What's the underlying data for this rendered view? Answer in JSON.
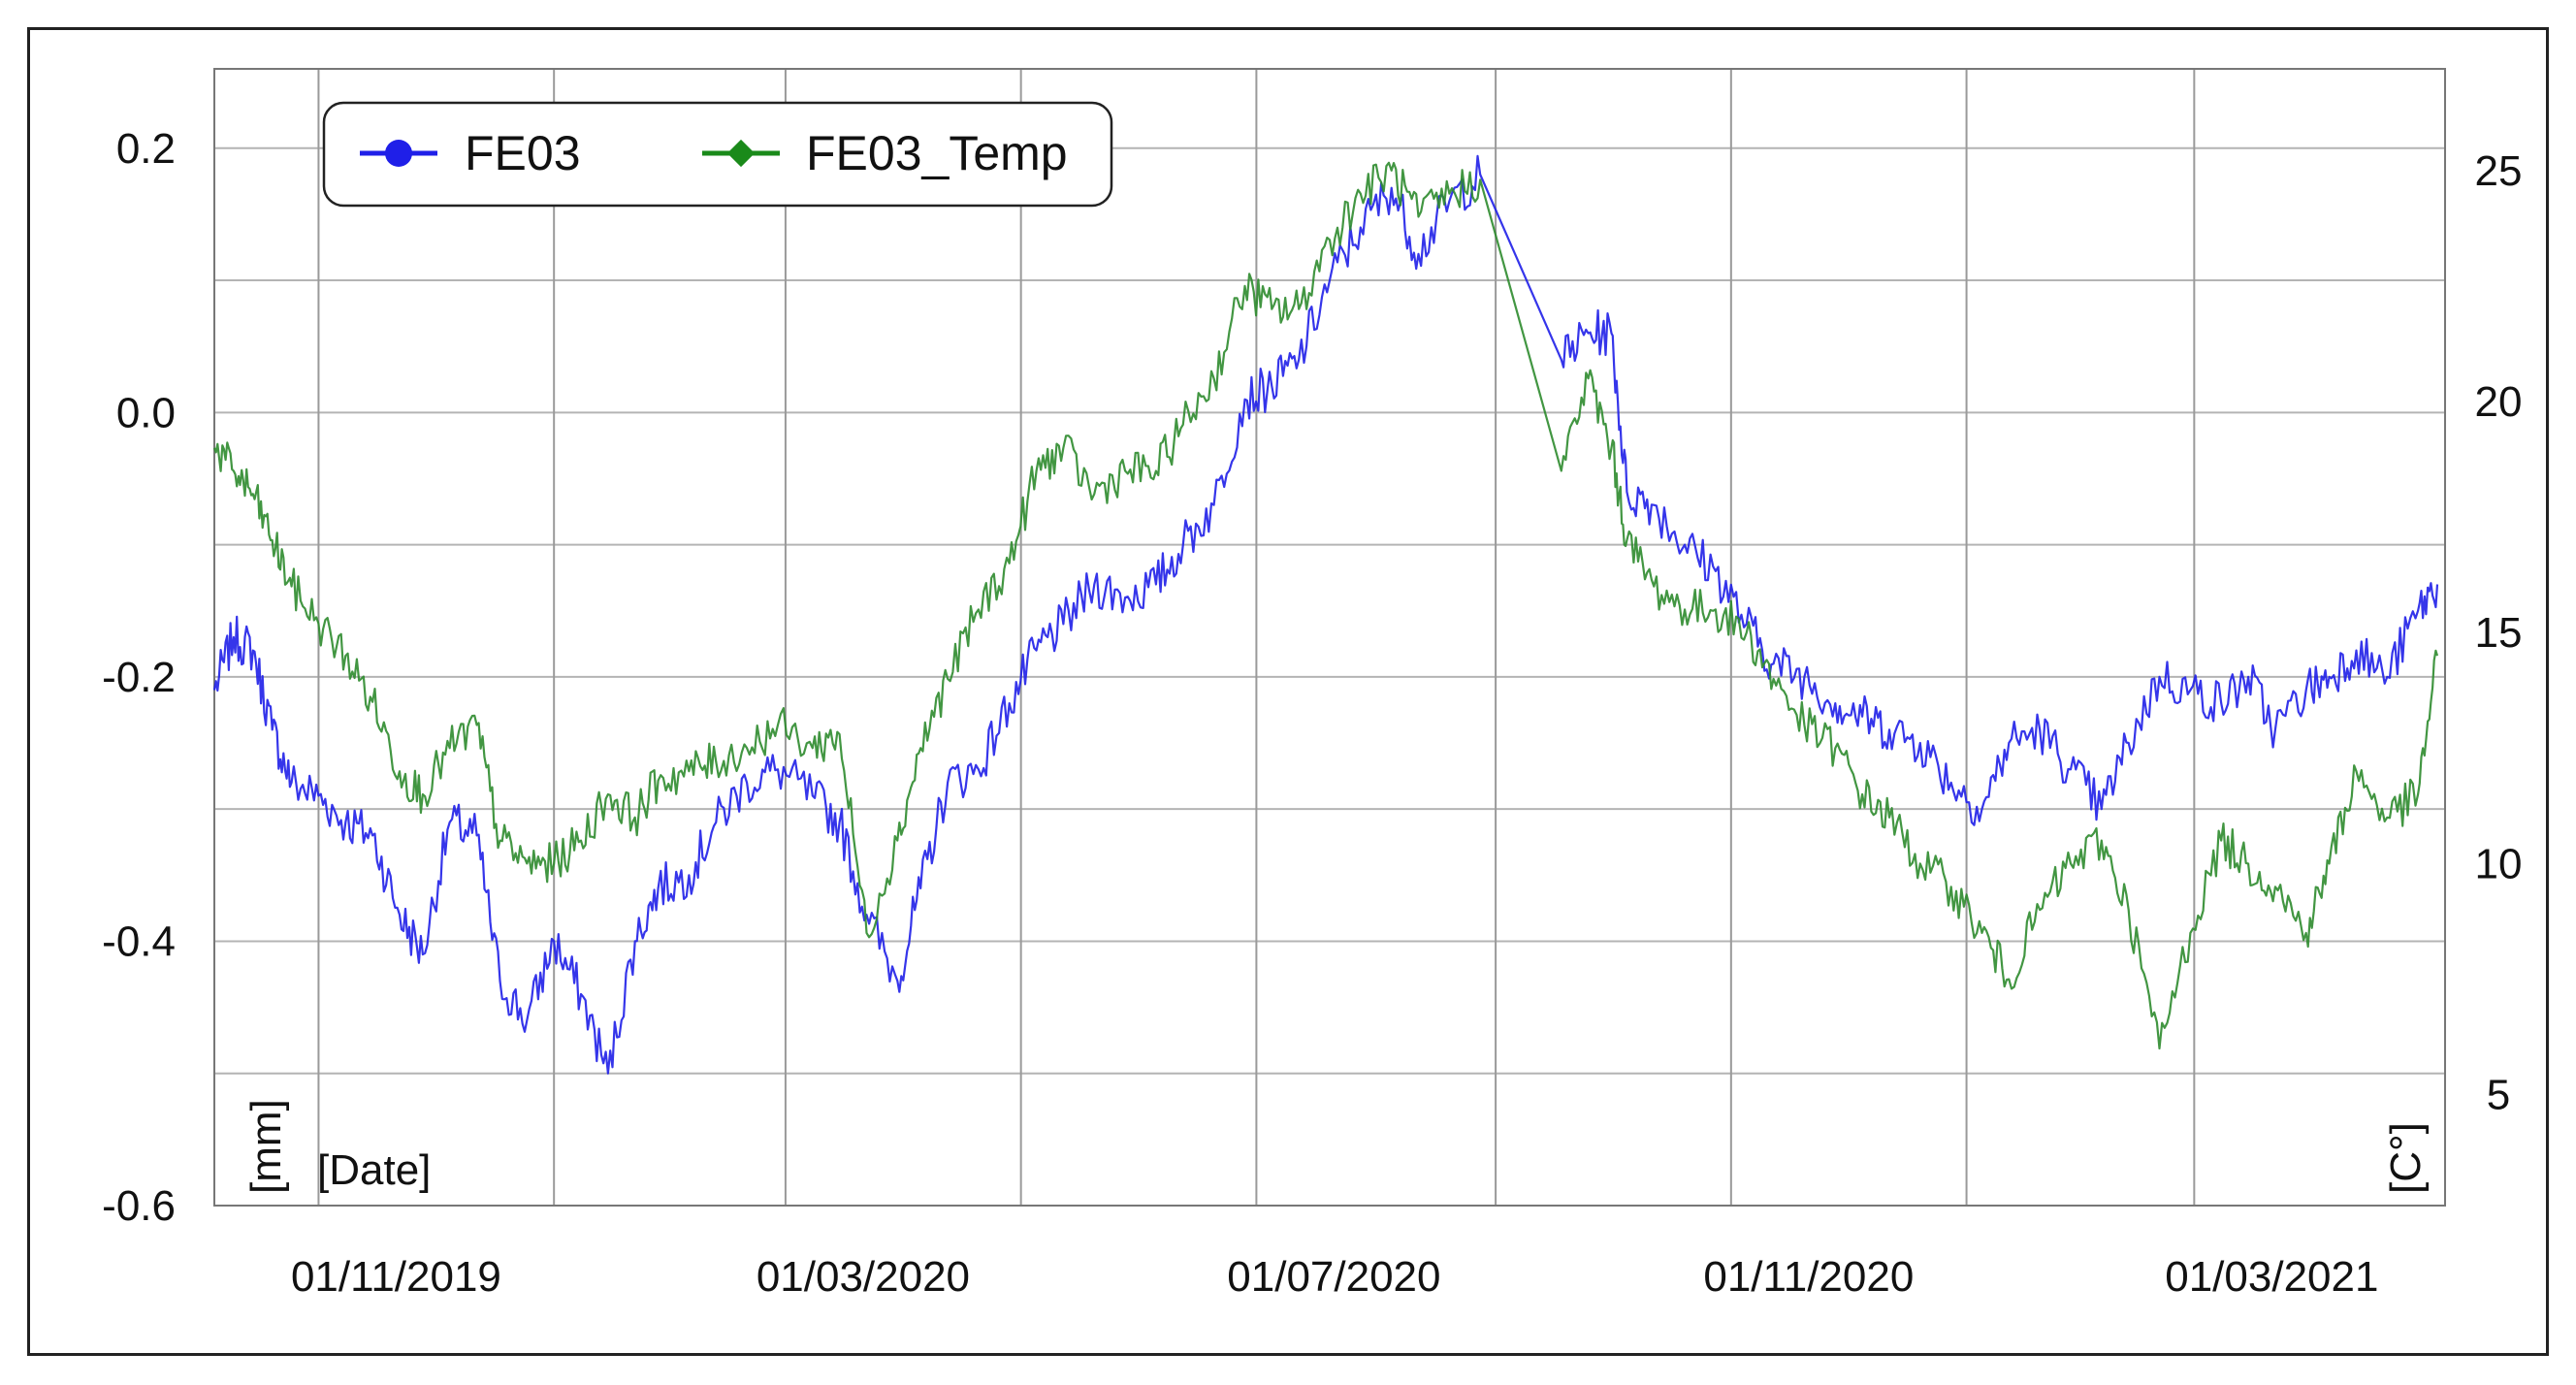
{
  "chart_data": {
    "type": "line",
    "title": "",
    "xlabel": "[Date]",
    "ylabel": "[mm]",
    "y2label": "[C°]",
    "x_tick_labels": [
      "01/11/2019",
      "01/03/2020",
      "01/07/2020",
      "01/11/2020",
      "01/03/2021"
    ],
    "x_range": [
      "2019-10-05",
      "2021-05-05"
    ],
    "ylim": [
      -0.6,
      0.26
    ],
    "y2lim": [
      2.6,
      27.2
    ],
    "y_ticks": [
      "0.2",
      "0.0",
      "-0.2",
      "-0.4",
      "-0.6"
    ],
    "y2_ticks": [
      "25",
      "20",
      "15",
      "10",
      "5"
    ],
    "grid": true,
    "legend_position": "top-left",
    "series": [
      {
        "name": "FE03",
        "axis": "left",
        "color": "#1f1fe8",
        "x": [
          "2019-10-05",
          "2019-10-10",
          "2019-10-15",
          "2019-10-20",
          "2019-10-25",
          "2019-11-01",
          "2019-11-08",
          "2019-11-15",
          "2019-11-22",
          "2019-11-28",
          "2019-12-05",
          "2019-12-12",
          "2019-12-18",
          "2019-12-25",
          "2020-01-01",
          "2020-01-08",
          "2020-01-15",
          "2020-01-22",
          "2020-01-28",
          "2020-02-05",
          "2020-02-12",
          "2020-02-20",
          "2020-02-28",
          "2020-03-08",
          "2020-03-15",
          "2020-03-22",
          "2020-03-30",
          "2020-04-05",
          "2020-04-12",
          "2020-04-20",
          "2020-04-28",
          "2020-05-05",
          "2020-05-12",
          "2020-05-20",
          "2020-05-28",
          "2020-06-05",
          "2020-06-12",
          "2020-06-20",
          "2020-06-28",
          "2020-07-05",
          "2020-07-12",
          "2020-07-20",
          "2020-07-28",
          "2020-08-05",
          "2020-08-12",
          "2020-08-20",
          "2020-08-28",
          "2020-09-18",
          "2020-09-25",
          "2020-10-01",
          "2020-10-05",
          "2020-10-12",
          "2020-10-20",
          "2020-10-28",
          "2020-11-05",
          "2020-11-12",
          "2020-11-20",
          "2020-11-28",
          "2020-12-05",
          "2020-12-12",
          "2020-12-20",
          "2020-12-28",
          "2021-01-05",
          "2021-01-12",
          "2021-01-20",
          "2021-01-28",
          "2021-02-05",
          "2021-02-12",
          "2021-02-20",
          "2021-02-28",
          "2021-03-08",
          "2021-03-15",
          "2021-03-22",
          "2021-03-30",
          "2021-04-05",
          "2021-04-12",
          "2021-04-20",
          "2021-04-28",
          "2021-05-03"
        ],
        "values": [
          -0.21,
          -0.17,
          -0.18,
          -0.24,
          -0.28,
          -0.29,
          -0.31,
          -0.32,
          -0.38,
          -0.41,
          -0.31,
          -0.32,
          -0.43,
          -0.46,
          -0.4,
          -0.44,
          -0.5,
          -0.4,
          -0.36,
          -0.35,
          -0.31,
          -0.28,
          -0.27,
          -0.29,
          -0.31,
          -0.38,
          -0.43,
          -0.36,
          -0.28,
          -0.27,
          -0.22,
          -0.18,
          -0.16,
          -0.13,
          -0.14,
          -0.13,
          -0.1,
          -0.07,
          0.01,
          0.02,
          0.04,
          0.1,
          0.14,
          0.17,
          0.12,
          0.16,
          0.18,
          0.04,
          0.06,
          0.06,
          -0.06,
          -0.07,
          -0.1,
          -0.12,
          -0.16,
          -0.19,
          -0.2,
          -0.22,
          -0.23,
          -0.24,
          -0.25,
          -0.28,
          -0.3,
          -0.25,
          -0.24,
          -0.27,
          -0.3,
          -0.25,
          -0.2,
          -0.21,
          -0.22,
          -0.2,
          -0.24,
          -0.21,
          -0.2,
          -0.18,
          -0.2,
          -0.15,
          -0.13
        ]
      },
      {
        "name": "FE03_Temp",
        "axis": "right",
        "color": "#2e8b2e",
        "x": [
          "2019-10-05",
          "2019-10-10",
          "2019-10-15",
          "2019-10-20",
          "2019-10-25",
          "2019-11-01",
          "2019-11-08",
          "2019-11-15",
          "2019-11-22",
          "2019-11-28",
          "2019-12-05",
          "2019-12-12",
          "2019-12-18",
          "2019-12-25",
          "2020-01-01",
          "2020-01-08",
          "2020-01-15",
          "2020-01-22",
          "2020-01-28",
          "2020-02-05",
          "2020-02-12",
          "2020-02-20",
          "2020-02-28",
          "2020-03-08",
          "2020-03-15",
          "2020-03-22",
          "2020-03-30",
          "2020-04-05",
          "2020-04-12",
          "2020-04-20",
          "2020-04-28",
          "2020-05-05",
          "2020-05-12",
          "2020-05-20",
          "2020-05-28",
          "2020-06-05",
          "2020-06-12",
          "2020-06-20",
          "2020-06-28",
          "2020-07-05",
          "2020-07-12",
          "2020-07-20",
          "2020-07-28",
          "2020-08-05",
          "2020-08-12",
          "2020-08-20",
          "2020-08-28",
          "2020-09-18",
          "2020-09-25",
          "2020-10-01",
          "2020-10-05",
          "2020-10-12",
          "2020-10-20",
          "2020-10-28",
          "2020-11-05",
          "2020-11-12",
          "2020-11-20",
          "2020-11-28",
          "2020-12-05",
          "2020-12-12",
          "2020-12-20",
          "2020-12-28",
          "2021-01-05",
          "2021-01-12",
          "2021-01-20",
          "2021-01-28",
          "2021-02-05",
          "2021-02-12",
          "2021-02-20",
          "2021-02-28",
          "2021-03-08",
          "2021-03-15",
          "2021-03-22",
          "2021-03-30",
          "2021-04-05",
          "2021-04-12",
          "2021-04-20",
          "2021-04-28",
          "2021-05-03"
        ],
        "values": [
          19.0,
          18.5,
          18.0,
          17.0,
          16.0,
          15.2,
          14.5,
          13.5,
          12.0,
          11.5,
          12.5,
          13.0,
          10.5,
          10.0,
          10.0,
          10.5,
          11.5,
          11.0,
          11.8,
          12.0,
          12.2,
          12.5,
          13.0,
          12.5,
          12.8,
          8.5,
          10.5,
          12.5,
          14.0,
          15.5,
          16.5,
          18.5,
          19.0,
          18.0,
          18.5,
          18.5,
          19.5,
          20.5,
          22.5,
          22.0,
          22.0,
          23.5,
          24.5,
          25.0,
          24.0,
          24.5,
          24.8,
          18.5,
          20.5,
          19.0,
          17.0,
          16.0,
          15.5,
          15.5,
          15.0,
          14.0,
          13.0,
          12.5,
          11.5,
          11.0,
          10.0,
          9.5,
          8.5,
          7.5,
          9.0,
          10.0,
          10.5,
          9.0,
          6.0,
          8.5,
          10.5,
          10.0,
          9.5,
          8.5,
          10.0,
          12.0,
          11.0,
          11.5,
          14.5
        ]
      }
    ]
  }
}
